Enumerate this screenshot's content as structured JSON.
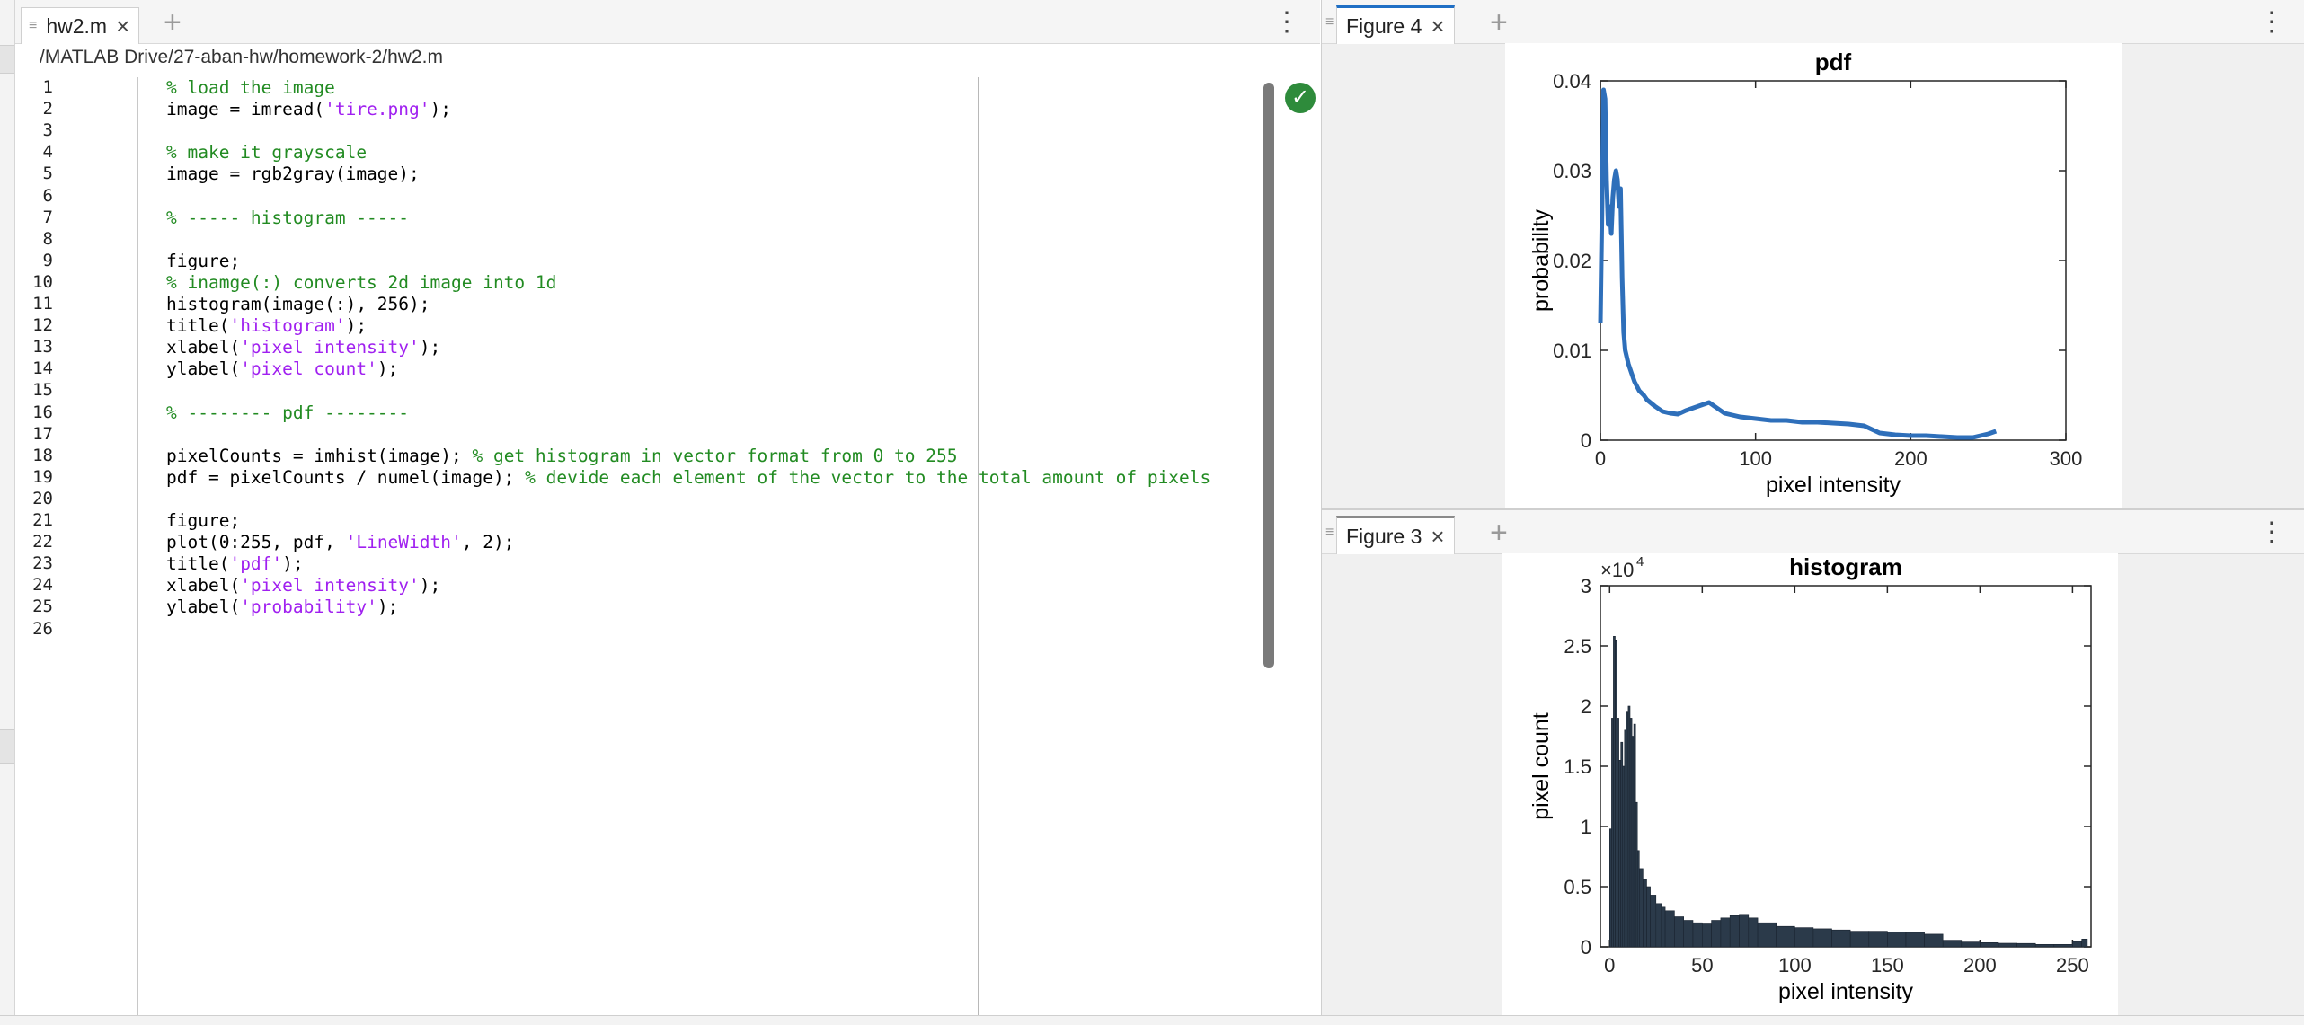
{
  "editor": {
    "tab_title": "hw2.m",
    "close_glyph": "×",
    "add_glyph": "+",
    "menu_glyph": "⋮",
    "file_path": "/MATLAB Drive/27-aban-hw/homework-2/hw2.m",
    "status_icon": "check-circle-icon",
    "lines": [
      {
        "n": "1",
        "parts": [
          {
            "t": "% load the image",
            "c": "cm"
          }
        ]
      },
      {
        "n": "2",
        "parts": [
          {
            "t": "image = imread(",
            "c": ""
          },
          {
            "t": "'tire.png'",
            "c": "st"
          },
          {
            "t": ");",
            "c": ""
          }
        ]
      },
      {
        "n": "3",
        "parts": []
      },
      {
        "n": "4",
        "parts": [
          {
            "t": "% make it grayscale",
            "c": "cm"
          }
        ]
      },
      {
        "n": "5",
        "parts": [
          {
            "t": "image = rgb2gray(image);",
            "c": ""
          }
        ]
      },
      {
        "n": "6",
        "parts": []
      },
      {
        "n": "7",
        "parts": [
          {
            "t": "% ----- histogram -----",
            "c": "cm"
          }
        ]
      },
      {
        "n": "8",
        "parts": []
      },
      {
        "n": "9",
        "parts": [
          {
            "t": "figure;",
            "c": ""
          }
        ]
      },
      {
        "n": "10",
        "parts": [
          {
            "t": "% inamge(:) converts 2d image into 1d",
            "c": "cm"
          }
        ]
      },
      {
        "n": "11",
        "parts": [
          {
            "t": "histogram(image(:), 256);",
            "c": ""
          }
        ]
      },
      {
        "n": "12",
        "parts": [
          {
            "t": "title(",
            "c": ""
          },
          {
            "t": "'histogram'",
            "c": "st"
          },
          {
            "t": ");",
            "c": ""
          }
        ]
      },
      {
        "n": "13",
        "parts": [
          {
            "t": "xlabel(",
            "c": ""
          },
          {
            "t": "'pixel intensity'",
            "c": "st"
          },
          {
            "t": ");",
            "c": ""
          }
        ]
      },
      {
        "n": "14",
        "parts": [
          {
            "t": "ylabel(",
            "c": ""
          },
          {
            "t": "'pixel count'",
            "c": "st"
          },
          {
            "t": ");",
            "c": ""
          }
        ]
      },
      {
        "n": "15",
        "parts": []
      },
      {
        "n": "16",
        "parts": [
          {
            "t": "% -------- pdf --------",
            "c": "cm"
          }
        ]
      },
      {
        "n": "17",
        "parts": []
      },
      {
        "n": "18",
        "parts": [
          {
            "t": "pixelCounts = imhist(image); ",
            "c": ""
          },
          {
            "t": "% get histogram in vector format from 0 to 255",
            "c": "cm"
          }
        ]
      },
      {
        "n": "19",
        "parts": [
          {
            "t": "pdf = pixelCounts / numel(image); ",
            "c": ""
          },
          {
            "t": "% devide each element of the vector to the total amount of pixels",
            "c": "cm"
          }
        ]
      },
      {
        "n": "20",
        "parts": []
      },
      {
        "n": "21",
        "parts": [
          {
            "t": "figure;",
            "c": ""
          }
        ]
      },
      {
        "n": "22",
        "parts": [
          {
            "t": "plot(0:255, pdf, ",
            "c": ""
          },
          {
            "t": "'LineWidth'",
            "c": "st"
          },
          {
            "t": ", 2);",
            "c": ""
          }
        ]
      },
      {
        "n": "23",
        "parts": [
          {
            "t": "title(",
            "c": ""
          },
          {
            "t": "'pdf'",
            "c": "st"
          },
          {
            "t": ");",
            "c": ""
          }
        ]
      },
      {
        "n": "24",
        "parts": [
          {
            "t": "xlabel(",
            "c": ""
          },
          {
            "t": "'pixel intensity'",
            "c": "st"
          },
          {
            "t": ");",
            "c": ""
          }
        ]
      },
      {
        "n": "25",
        "parts": [
          {
            "t": "ylabel(",
            "c": ""
          },
          {
            "t": "'probability'",
            "c": "st"
          },
          {
            "t": ");",
            "c": ""
          }
        ]
      },
      {
        "n": "26",
        "parts": []
      }
    ]
  },
  "figure_top": {
    "tab_title": "Figure 4",
    "close_glyph": "×",
    "add_glyph": "+",
    "menu_glyph": "⋮"
  },
  "figure_bottom": {
    "tab_title": "Figure 3",
    "close_glyph": "×",
    "add_glyph": "+",
    "menu_glyph": "⋮"
  },
  "chart_data": [
    {
      "type": "line",
      "title": "pdf",
      "xlabel": "pixel intensity",
      "ylabel": "probability",
      "xlim": [
        0,
        300
      ],
      "ylim": [
        0,
        0.04
      ],
      "xticks": [
        "0",
        "100",
        "200",
        "300"
      ],
      "yticks": [
        "0",
        "0.01",
        "0.02",
        "0.03",
        "0.04"
      ],
      "line_color": "#2e6fba",
      "grid": false,
      "x": [
        0,
        1,
        2,
        3,
        4,
        5,
        6,
        7,
        8,
        9,
        10,
        11,
        12,
        13,
        14,
        15,
        16,
        18,
        20,
        22,
        25,
        28,
        30,
        35,
        40,
        45,
        50,
        55,
        60,
        65,
        70,
        75,
        80,
        90,
        100,
        110,
        120,
        130,
        140,
        150,
        160,
        170,
        180,
        190,
        200,
        210,
        220,
        230,
        240,
        250,
        255
      ],
      "y": [
        0.013,
        0.025,
        0.039,
        0.038,
        0.029,
        0.024,
        0.026,
        0.023,
        0.027,
        0.029,
        0.03,
        0.029,
        0.026,
        0.028,
        0.018,
        0.012,
        0.01,
        0.0085,
        0.0075,
        0.0065,
        0.0055,
        0.005,
        0.0045,
        0.0038,
        0.0032,
        0.003,
        0.0029,
        0.0033,
        0.0036,
        0.0039,
        0.0042,
        0.0036,
        0.003,
        0.0026,
        0.0024,
        0.0022,
        0.0022,
        0.002,
        0.002,
        0.0019,
        0.0018,
        0.0016,
        0.0008,
        0.0006,
        0.0005,
        0.0005,
        0.0004,
        0.0003,
        0.0003,
        0.0007,
        0.001
      ]
    },
    {
      "type": "bar",
      "title": "histogram",
      "xlabel": "pixel intensity",
      "ylabel": "pixel count",
      "exponent_label": "×10",
      "exponent": "4",
      "xlim": [
        -5,
        260
      ],
      "ylim": [
        0,
        30000
      ],
      "xticks": [
        "0",
        "50",
        "100",
        "150",
        "200",
        "250"
      ],
      "yticks": [
        "0",
        "0.5",
        "1",
        "1.5",
        "2",
        "2.5",
        "3"
      ],
      "bar_color": "#2b3a4a",
      "grid": false,
      "x": [
        0,
        1,
        2,
        3,
        4,
        5,
        6,
        7,
        8,
        9,
        10,
        11,
        12,
        13,
        14,
        15,
        16,
        18,
        20,
        22,
        25,
        28,
        30,
        35,
        40,
        45,
        50,
        55,
        60,
        65,
        70,
        75,
        80,
        90,
        100,
        110,
        120,
        130,
        140,
        150,
        160,
        170,
        180,
        190,
        200,
        210,
        220,
        230,
        240,
        250,
        255
      ],
      "values": [
        9800,
        19000,
        25800,
        25500,
        19000,
        15500,
        17000,
        15000,
        18000,
        19500,
        20000,
        19000,
        17500,
        18500,
        12000,
        8000,
        6500,
        5600,
        5000,
        4300,
        3600,
        3300,
        3000,
        2500,
        2200,
        2000,
        1900,
        2200,
        2400,
        2600,
        2700,
        2400,
        2000,
        1700,
        1600,
        1500,
        1400,
        1300,
        1300,
        1250,
        1200,
        1050,
        550,
        400,
        350,
        300,
        280,
        200,
        200,
        450,
        650
      ]
    }
  ]
}
